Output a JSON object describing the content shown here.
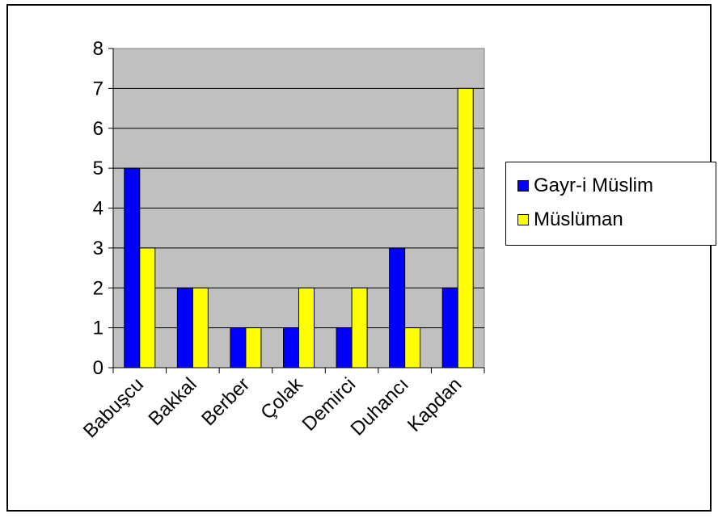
{
  "chart_data": {
    "type": "bar",
    "title": "",
    "xlabel": "",
    "ylabel": "",
    "ylim": [
      0,
      8
    ],
    "yticks": [
      0,
      1,
      2,
      3,
      4,
      5,
      6,
      7,
      8
    ],
    "categories": [
      "Babuşcu",
      "Bakkal",
      "Berber",
      "Çolak",
      "Demirci",
      "Duhancı",
      "Kapdan"
    ],
    "series": [
      {
        "name": "Gayr-i Müslim",
        "color": "#0000ff",
        "values": [
          5,
          2,
          1,
          1,
          1,
          3,
          2
        ]
      },
      {
        "name": "Müslüman",
        "color": "#ffff00",
        "values": [
          3,
          2,
          1,
          2,
          2,
          1,
          7
        ]
      }
    ],
    "grid": true,
    "legend_position": "right",
    "plot_background": "#c0c0c0"
  }
}
